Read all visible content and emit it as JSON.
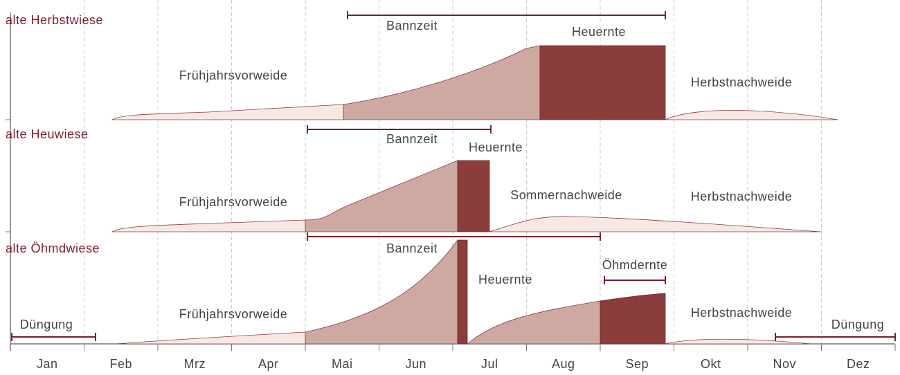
{
  "months": [
    "Jan",
    "Feb",
    "Mrz",
    "Apr",
    "Mai",
    "Jun",
    "Jul",
    "Aug",
    "Sep",
    "Okt",
    "Nov",
    "Dez"
  ],
  "rows": [
    {
      "title": "alte Herbstwiese",
      "bannzeit": "Bannzeit",
      "ernte": "Heuernte",
      "vorweide": "Frühjahrsvorweide",
      "nachweide": "Herbstnachweide"
    },
    {
      "title": "alte Heuwiese",
      "bannzeit": "Bannzeit",
      "ernte": "Heuernte",
      "vorweide": "Frühjahrsvorweide",
      "sommer": "Sommernachweide",
      "nachweide": "Herbstnachweide"
    },
    {
      "title": "alte Öhmdwiese",
      "bannzeit": "Bannzeit",
      "ernte": "Heuernte",
      "oehmd": "Öhmdernte",
      "vorweide": "Frühjahrsvorweide",
      "nachweide": "Herbstnachweide",
      "duengung1": "Düngung",
      "duengung2": "Düngung"
    }
  ]
}
